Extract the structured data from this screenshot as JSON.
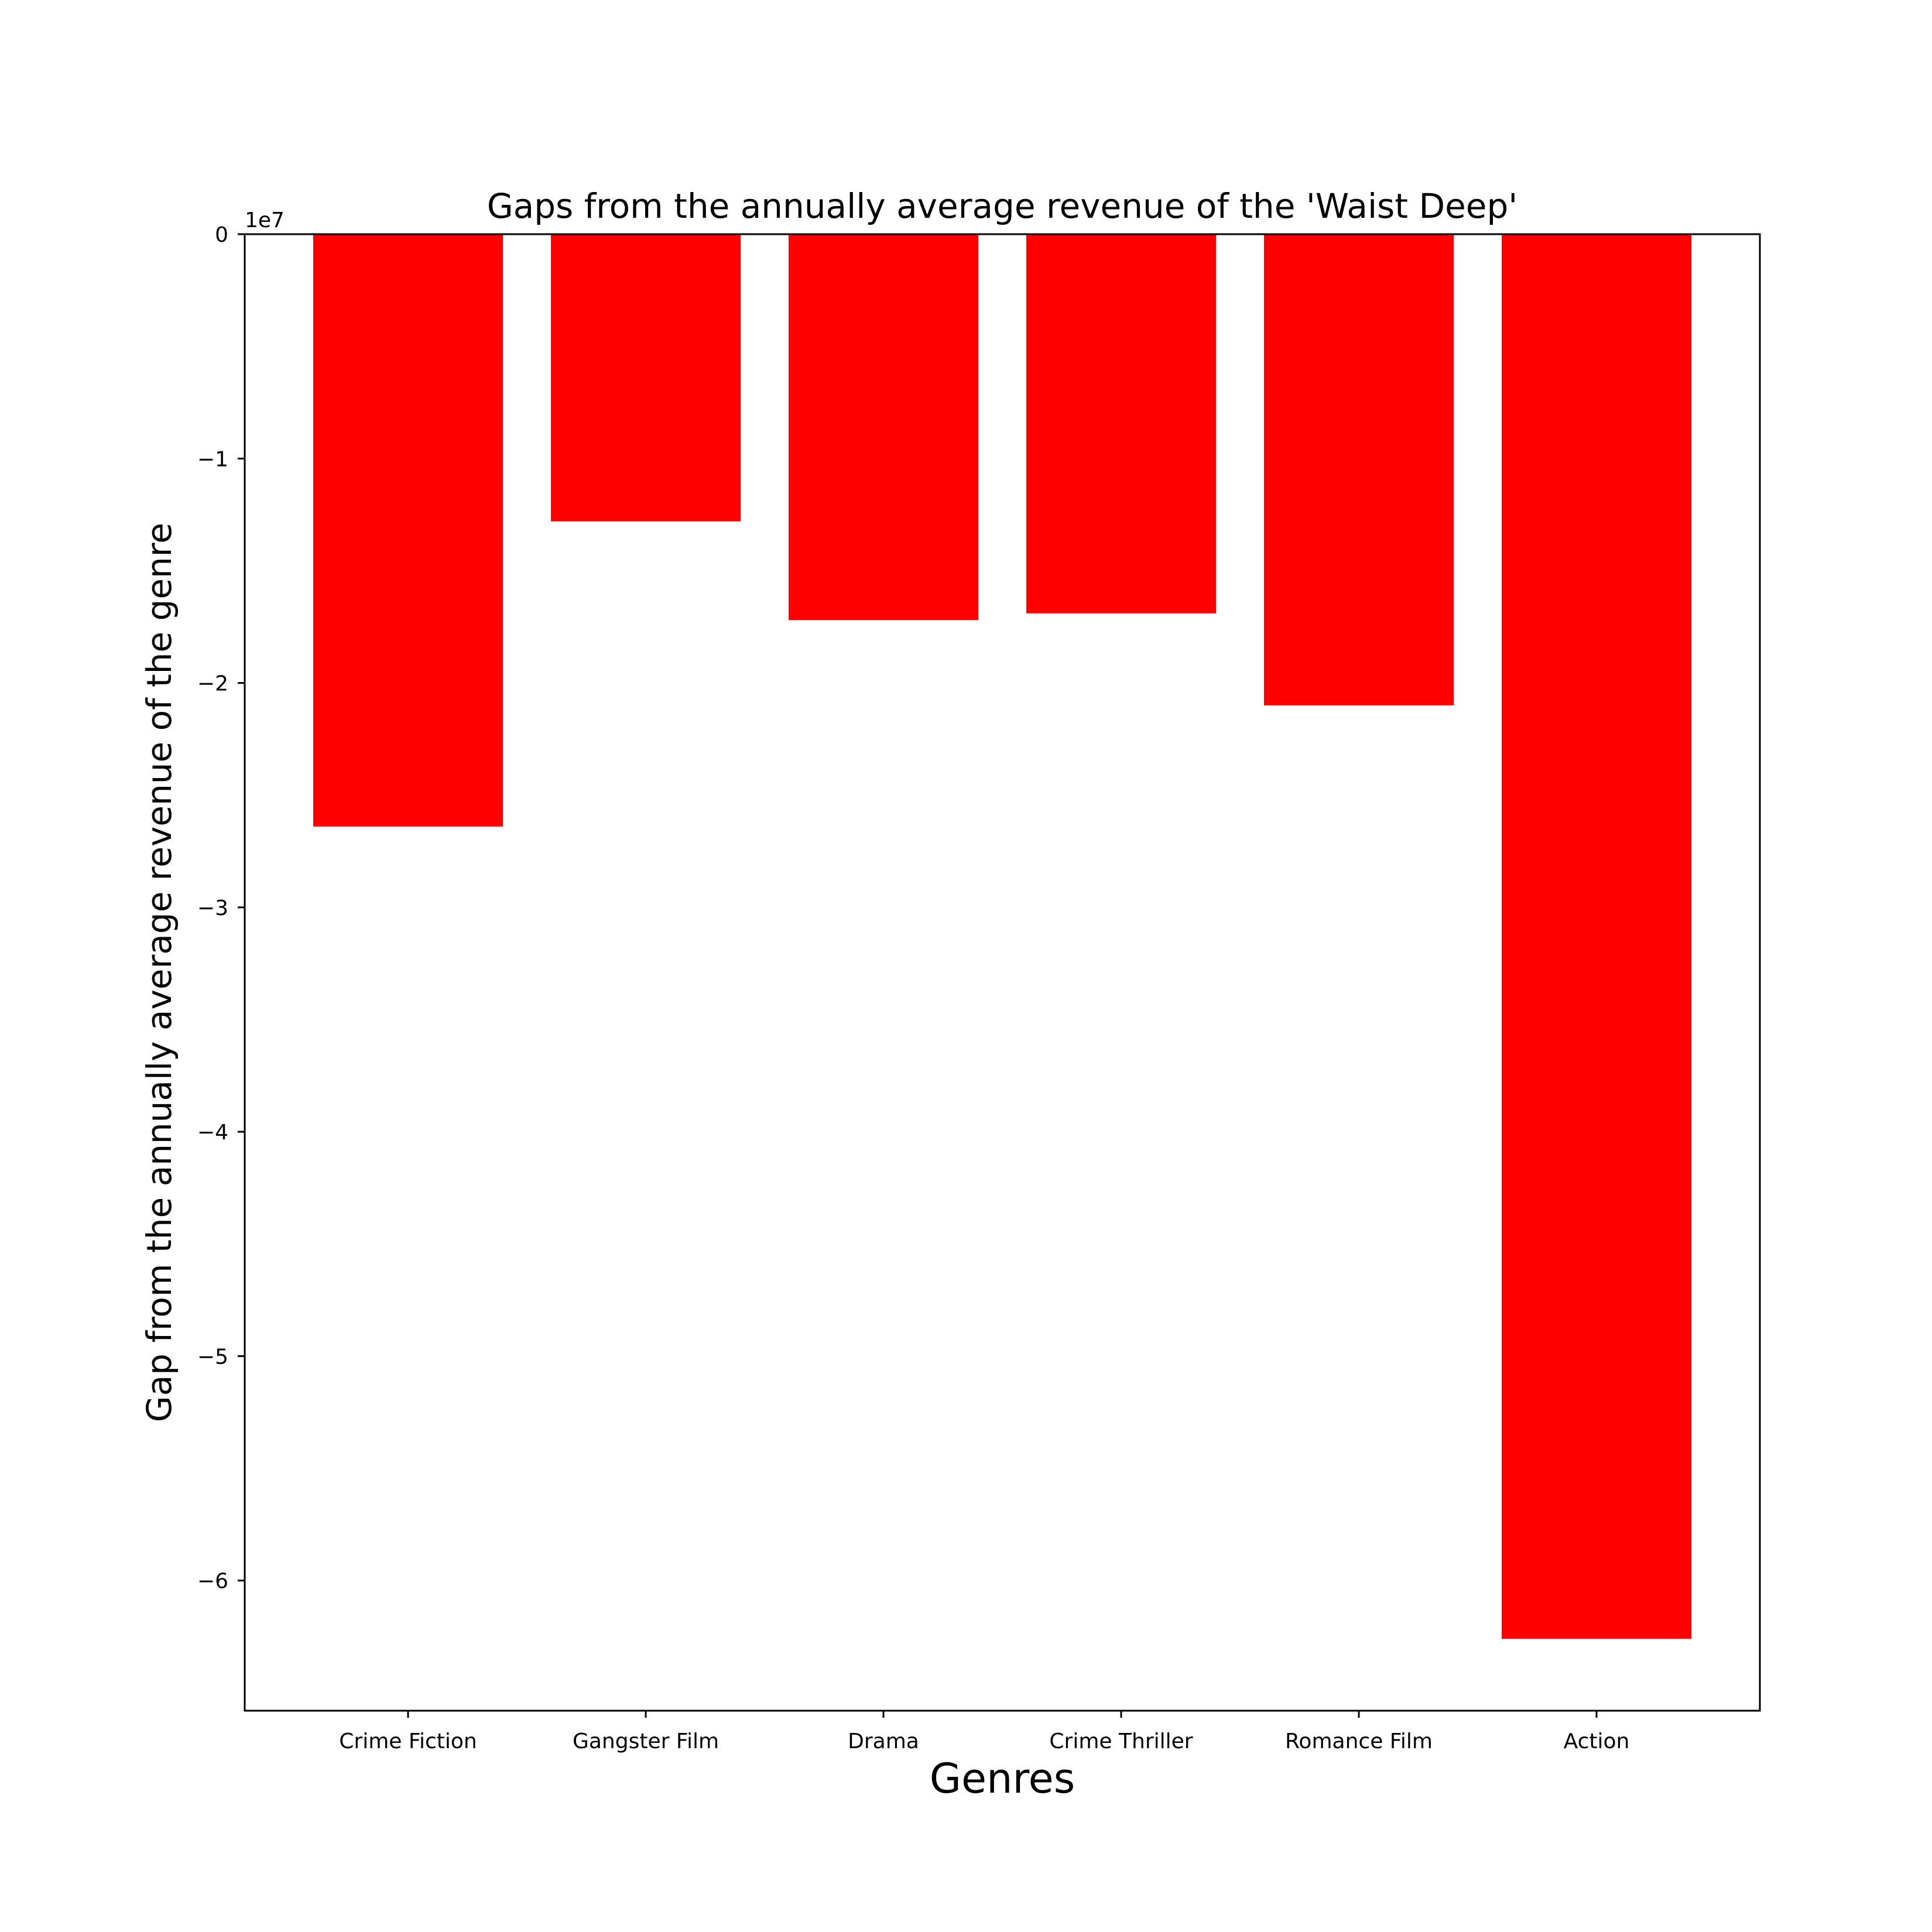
{
  "chart_data": {
    "type": "bar",
    "title": "Gaps from the annually average revenue of the 'Waist Deep'",
    "xlabel": "Genres",
    "ylabel": "Gap from the annually average revenue of the genre",
    "y_offset_label": "1e7",
    "categories": [
      "Crime Fiction",
      "Gangster Film",
      "Drama",
      "Crime Thriller",
      "Romance Film",
      "Action"
    ],
    "values": [
      -26400000,
      -12800000,
      -17200000,
      -16900000,
      -21000000,
      -62600000
    ],
    "y_ticks": [
      0,
      -1,
      -2,
      -3,
      -4,
      -5,
      -6
    ],
    "y_tick_labels": [
      "0",
      "−1",
      "−2",
      "−3",
      "−4",
      "−5",
      "−6"
    ],
    "y_tick_scale": 10000000,
    "ylim": [
      -65800000,
      0
    ],
    "bar_color": "#ff0000",
    "grid": false,
    "legend": "none"
  }
}
